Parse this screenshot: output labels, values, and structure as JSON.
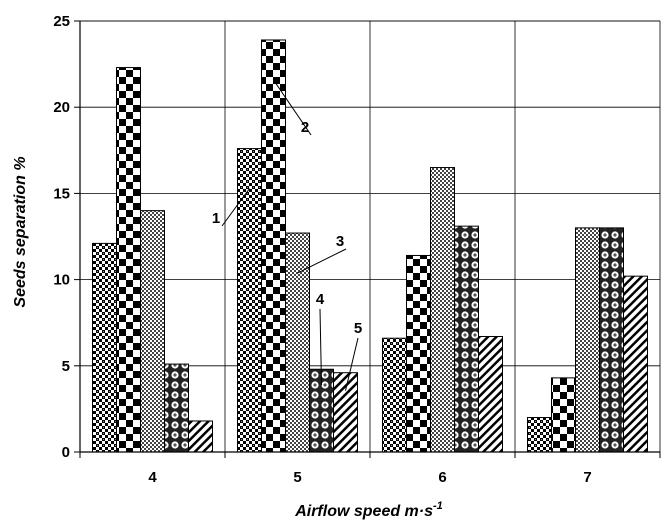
{
  "chart_data": {
    "type": "bar",
    "title": "",
    "xlabel": "Airflow speed m·s",
    "xlabel_sup": "-1",
    "ylabel": "Seeds separation %",
    "ylim": [
      0,
      25
    ],
    "yticks": [
      "0",
      "5",
      "10",
      "15",
      "20",
      "25"
    ],
    "categories": [
      "4",
      "5",
      "6",
      "7"
    ],
    "grid": true,
    "legend": "none",
    "series": [
      {
        "label": "1",
        "pattern": "dense-check",
        "values": [
          12.1,
          17.6,
          6.6,
          2.0
        ]
      },
      {
        "label": "2",
        "pattern": "big-check",
        "values": [
          22.3,
          23.9,
          11.4,
          4.3
        ]
      },
      {
        "label": "3",
        "pattern": "fine-check",
        "values": [
          14.0,
          12.7,
          16.5,
          13.0
        ]
      },
      {
        "label": "4",
        "pattern": "spheres",
        "values": [
          5.1,
          4.8,
          13.1,
          13.0
        ]
      },
      {
        "label": "5",
        "pattern": "diagonal",
        "values": [
          1.8,
          4.6,
          6.7,
          10.2
        ]
      }
    ],
    "annotations": [
      "1",
      "2",
      "3",
      "4",
      "5"
    ]
  }
}
